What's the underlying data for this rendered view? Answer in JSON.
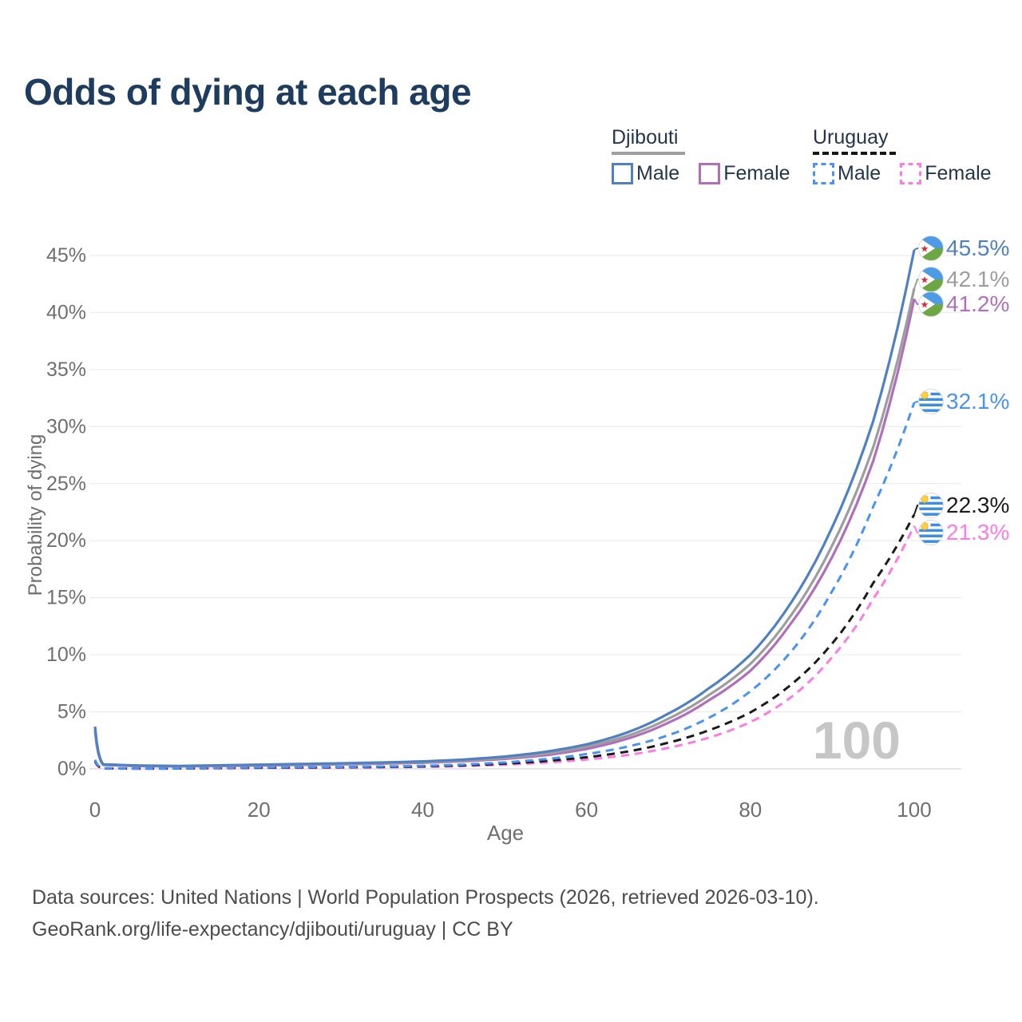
{
  "footer": {
    "line1": "Data sources: United Nations | World Population Prospects (2026, retrieved 2026-03-10).",
    "line2": "GeoRank.org/life-expectancy/djibouti/uruguay | CC BY"
  },
  "legend": {
    "groups": [
      {
        "country": "Djibouti",
        "line_style": "solid",
        "underline_color": "#9e9e9e",
        "items": [
          {
            "label": "Male",
            "color": "#4f81c2",
            "style": "solid"
          },
          {
            "label": "Female",
            "color": "#b06fbb",
            "style": "solid"
          }
        ]
      },
      {
        "country": "Uruguay",
        "line_style": "dashed",
        "underline_color": "#161616",
        "items": [
          {
            "label": "Male",
            "color": "#4a93f2",
            "style": "dashed"
          },
          {
            "label": "Female",
            "color": "#fb7ce3",
            "style": "dashed"
          }
        ]
      }
    ]
  },
  "chart_data": {
    "type": "line",
    "title": "Odds of dying at each age",
    "xlabel": "Age",
    "ylabel": "Probability of dying",
    "xlim": [
      0,
      100
    ],
    "ylim": [
      0,
      47
    ],
    "grid": "horizontal",
    "legend_position": "top-right",
    "current_age_marker": "100",
    "x_ticks": [
      {
        "v": 0,
        "label": "0"
      },
      {
        "v": 20,
        "label": "20"
      },
      {
        "v": 40,
        "label": "40"
      },
      {
        "v": 60,
        "label": "60"
      },
      {
        "v": 80,
        "label": "80"
      },
      {
        "v": 100,
        "label": "100"
      }
    ],
    "y_ticks": [
      {
        "v": 0,
        "label": "0%"
      },
      {
        "v": 5,
        "label": "5%"
      },
      {
        "v": 10,
        "label": "10%"
      },
      {
        "v": 15,
        "label": "15%"
      },
      {
        "v": 20,
        "label": "20%"
      },
      {
        "v": 25,
        "label": "25%"
      },
      {
        "v": 30,
        "label": "30%"
      },
      {
        "v": 35,
        "label": "35%"
      },
      {
        "v": 40,
        "label": "40%"
      },
      {
        "v": 45,
        "label": "45%"
      }
    ],
    "series": [
      {
        "id": "uruguay-female",
        "name": "Uruguay Female",
        "country": "Uruguay",
        "sex": "Female",
        "style": "dashed",
        "color": "#fb7ce3",
        "flag": "uruguay",
        "end_label": "21.3%",
        "points": [
          [
            0,
            0.6
          ],
          [
            1,
            0.04
          ],
          [
            5,
            0.02
          ],
          [
            10,
            0.027
          ],
          [
            15,
            0.05
          ],
          [
            20,
            0.08
          ],
          [
            25,
            0.095
          ],
          [
            30,
            0.11
          ],
          [
            35,
            0.14
          ],
          [
            40,
            0.18
          ],
          [
            45,
            0.25
          ],
          [
            50,
            0.37
          ],
          [
            55,
            0.55
          ],
          [
            60,
            0.82
          ],
          [
            65,
            1.22
          ],
          [
            70,
            1.85
          ],
          [
            75,
            2.75
          ],
          [
            80,
            4.1
          ],
          [
            85,
            6.3
          ],
          [
            90,
            9.8
          ],
          [
            95,
            14.9
          ],
          [
            100,
            21.3
          ]
        ]
      },
      {
        "id": "uruguay-both",
        "name": "Uruguay Both sexes",
        "country": "Uruguay",
        "sex": "Both",
        "style": "dashed",
        "color": "#1b1b1b",
        "flag": "uruguay",
        "end_label": "22.3%",
        "points": [
          [
            0,
            0.7
          ],
          [
            1,
            0.05
          ],
          [
            5,
            0.025
          ],
          [
            10,
            0.033
          ],
          [
            15,
            0.07
          ],
          [
            20,
            0.1
          ],
          [
            25,
            0.12
          ],
          [
            30,
            0.14
          ],
          [
            35,
            0.17
          ],
          [
            40,
            0.22
          ],
          [
            45,
            0.31
          ],
          [
            50,
            0.46
          ],
          [
            55,
            0.69
          ],
          [
            60,
            1.02
          ],
          [
            65,
            1.52
          ],
          [
            70,
            2.3
          ],
          [
            75,
            3.4
          ],
          [
            80,
            4.95
          ],
          [
            85,
            7.4
          ],
          [
            90,
            11.0
          ],
          [
            95,
            16.3
          ],
          [
            100,
            22.3
          ]
        ]
      },
      {
        "id": "uruguay-male",
        "name": "Uruguay Male",
        "country": "Uruguay",
        "sex": "Male",
        "style": "dashed",
        "color": "#4a93f2",
        "flag": "uruguay",
        "end_label": "32.1%",
        "points": [
          [
            0,
            0.8
          ],
          [
            1,
            0.06
          ],
          [
            5,
            0.03
          ],
          [
            10,
            0.04
          ],
          [
            15,
            0.09
          ],
          [
            20,
            0.13
          ],
          [
            25,
            0.15
          ],
          [
            30,
            0.17
          ],
          [
            35,
            0.21
          ],
          [
            40,
            0.27
          ],
          [
            45,
            0.38
          ],
          [
            50,
            0.57
          ],
          [
            55,
            0.86
          ],
          [
            60,
            1.3
          ],
          [
            65,
            1.95
          ],
          [
            70,
            2.95
          ],
          [
            75,
            4.5
          ],
          [
            80,
            6.8
          ],
          [
            85,
            10.3
          ],
          [
            90,
            15.6
          ],
          [
            95,
            23.0
          ],
          [
            100,
            32.1
          ]
        ]
      },
      {
        "id": "djibouti-female",
        "name": "Djibouti Female",
        "country": "Djibouti",
        "sex": "Female",
        "style": "solid",
        "color": "#b06fbb",
        "flag": "djibouti",
        "end_label": "41.2%",
        "points": [
          [
            0,
            3.3
          ],
          [
            1,
            0.35
          ],
          [
            5,
            0.25
          ],
          [
            10,
            0.22
          ],
          [
            15,
            0.25
          ],
          [
            20,
            0.3
          ],
          [
            25,
            0.35
          ],
          [
            30,
            0.4
          ],
          [
            35,
            0.46
          ],
          [
            40,
            0.54
          ],
          [
            45,
            0.67
          ],
          [
            50,
            0.88
          ],
          [
            55,
            1.2
          ],
          [
            60,
            1.75
          ],
          [
            65,
            2.65
          ],
          [
            70,
            4.05
          ],
          [
            75,
            6.05
          ],
          [
            80,
            8.6
          ],
          [
            85,
            12.8
          ],
          [
            90,
            18.6
          ],
          [
            95,
            27.0
          ],
          [
            100,
            41.2
          ]
        ]
      },
      {
        "id": "djibouti-both",
        "name": "Djibouti Both sexes",
        "country": "Djibouti",
        "sex": "Both",
        "style": "solid",
        "color": "#9d9d9d",
        "flag": "djibouti",
        "end_label": "42.1%",
        "points": [
          [
            0,
            3.5
          ],
          [
            1,
            0.38
          ],
          [
            5,
            0.28
          ],
          [
            10,
            0.24
          ],
          [
            15,
            0.28
          ],
          [
            20,
            0.34
          ],
          [
            25,
            0.39
          ],
          [
            30,
            0.45
          ],
          [
            35,
            0.51
          ],
          [
            40,
            0.6
          ],
          [
            45,
            0.74
          ],
          [
            50,
            0.97
          ],
          [
            55,
            1.34
          ],
          [
            60,
            1.95
          ],
          [
            65,
            2.9
          ],
          [
            70,
            4.4
          ],
          [
            75,
            6.5
          ],
          [
            80,
            9.2
          ],
          [
            85,
            13.5
          ],
          [
            90,
            19.6
          ],
          [
            95,
            28.2
          ],
          [
            100,
            42.1
          ]
        ]
      },
      {
        "id": "djibouti-male",
        "name": "Djibouti Male",
        "country": "Djibouti",
        "sex": "Male",
        "style": "solid",
        "color": "#4f81c2",
        "flag": "djibouti",
        "end_label": "45.5%",
        "points": [
          [
            0,
            3.7
          ],
          [
            1,
            0.4
          ],
          [
            5,
            0.3
          ],
          [
            10,
            0.26
          ],
          [
            15,
            0.31
          ],
          [
            20,
            0.37
          ],
          [
            25,
            0.43
          ],
          [
            30,
            0.49
          ],
          [
            35,
            0.56
          ],
          [
            40,
            0.66
          ],
          [
            45,
            0.82
          ],
          [
            50,
            1.08
          ],
          [
            55,
            1.5
          ],
          [
            60,
            2.15
          ],
          [
            65,
            3.2
          ],
          [
            70,
            4.85
          ],
          [
            75,
            7.1
          ],
          [
            80,
            10.0
          ],
          [
            85,
            14.6
          ],
          [
            90,
            21.2
          ],
          [
            95,
            30.5
          ],
          [
            100,
            45.5
          ]
        ]
      }
    ]
  }
}
